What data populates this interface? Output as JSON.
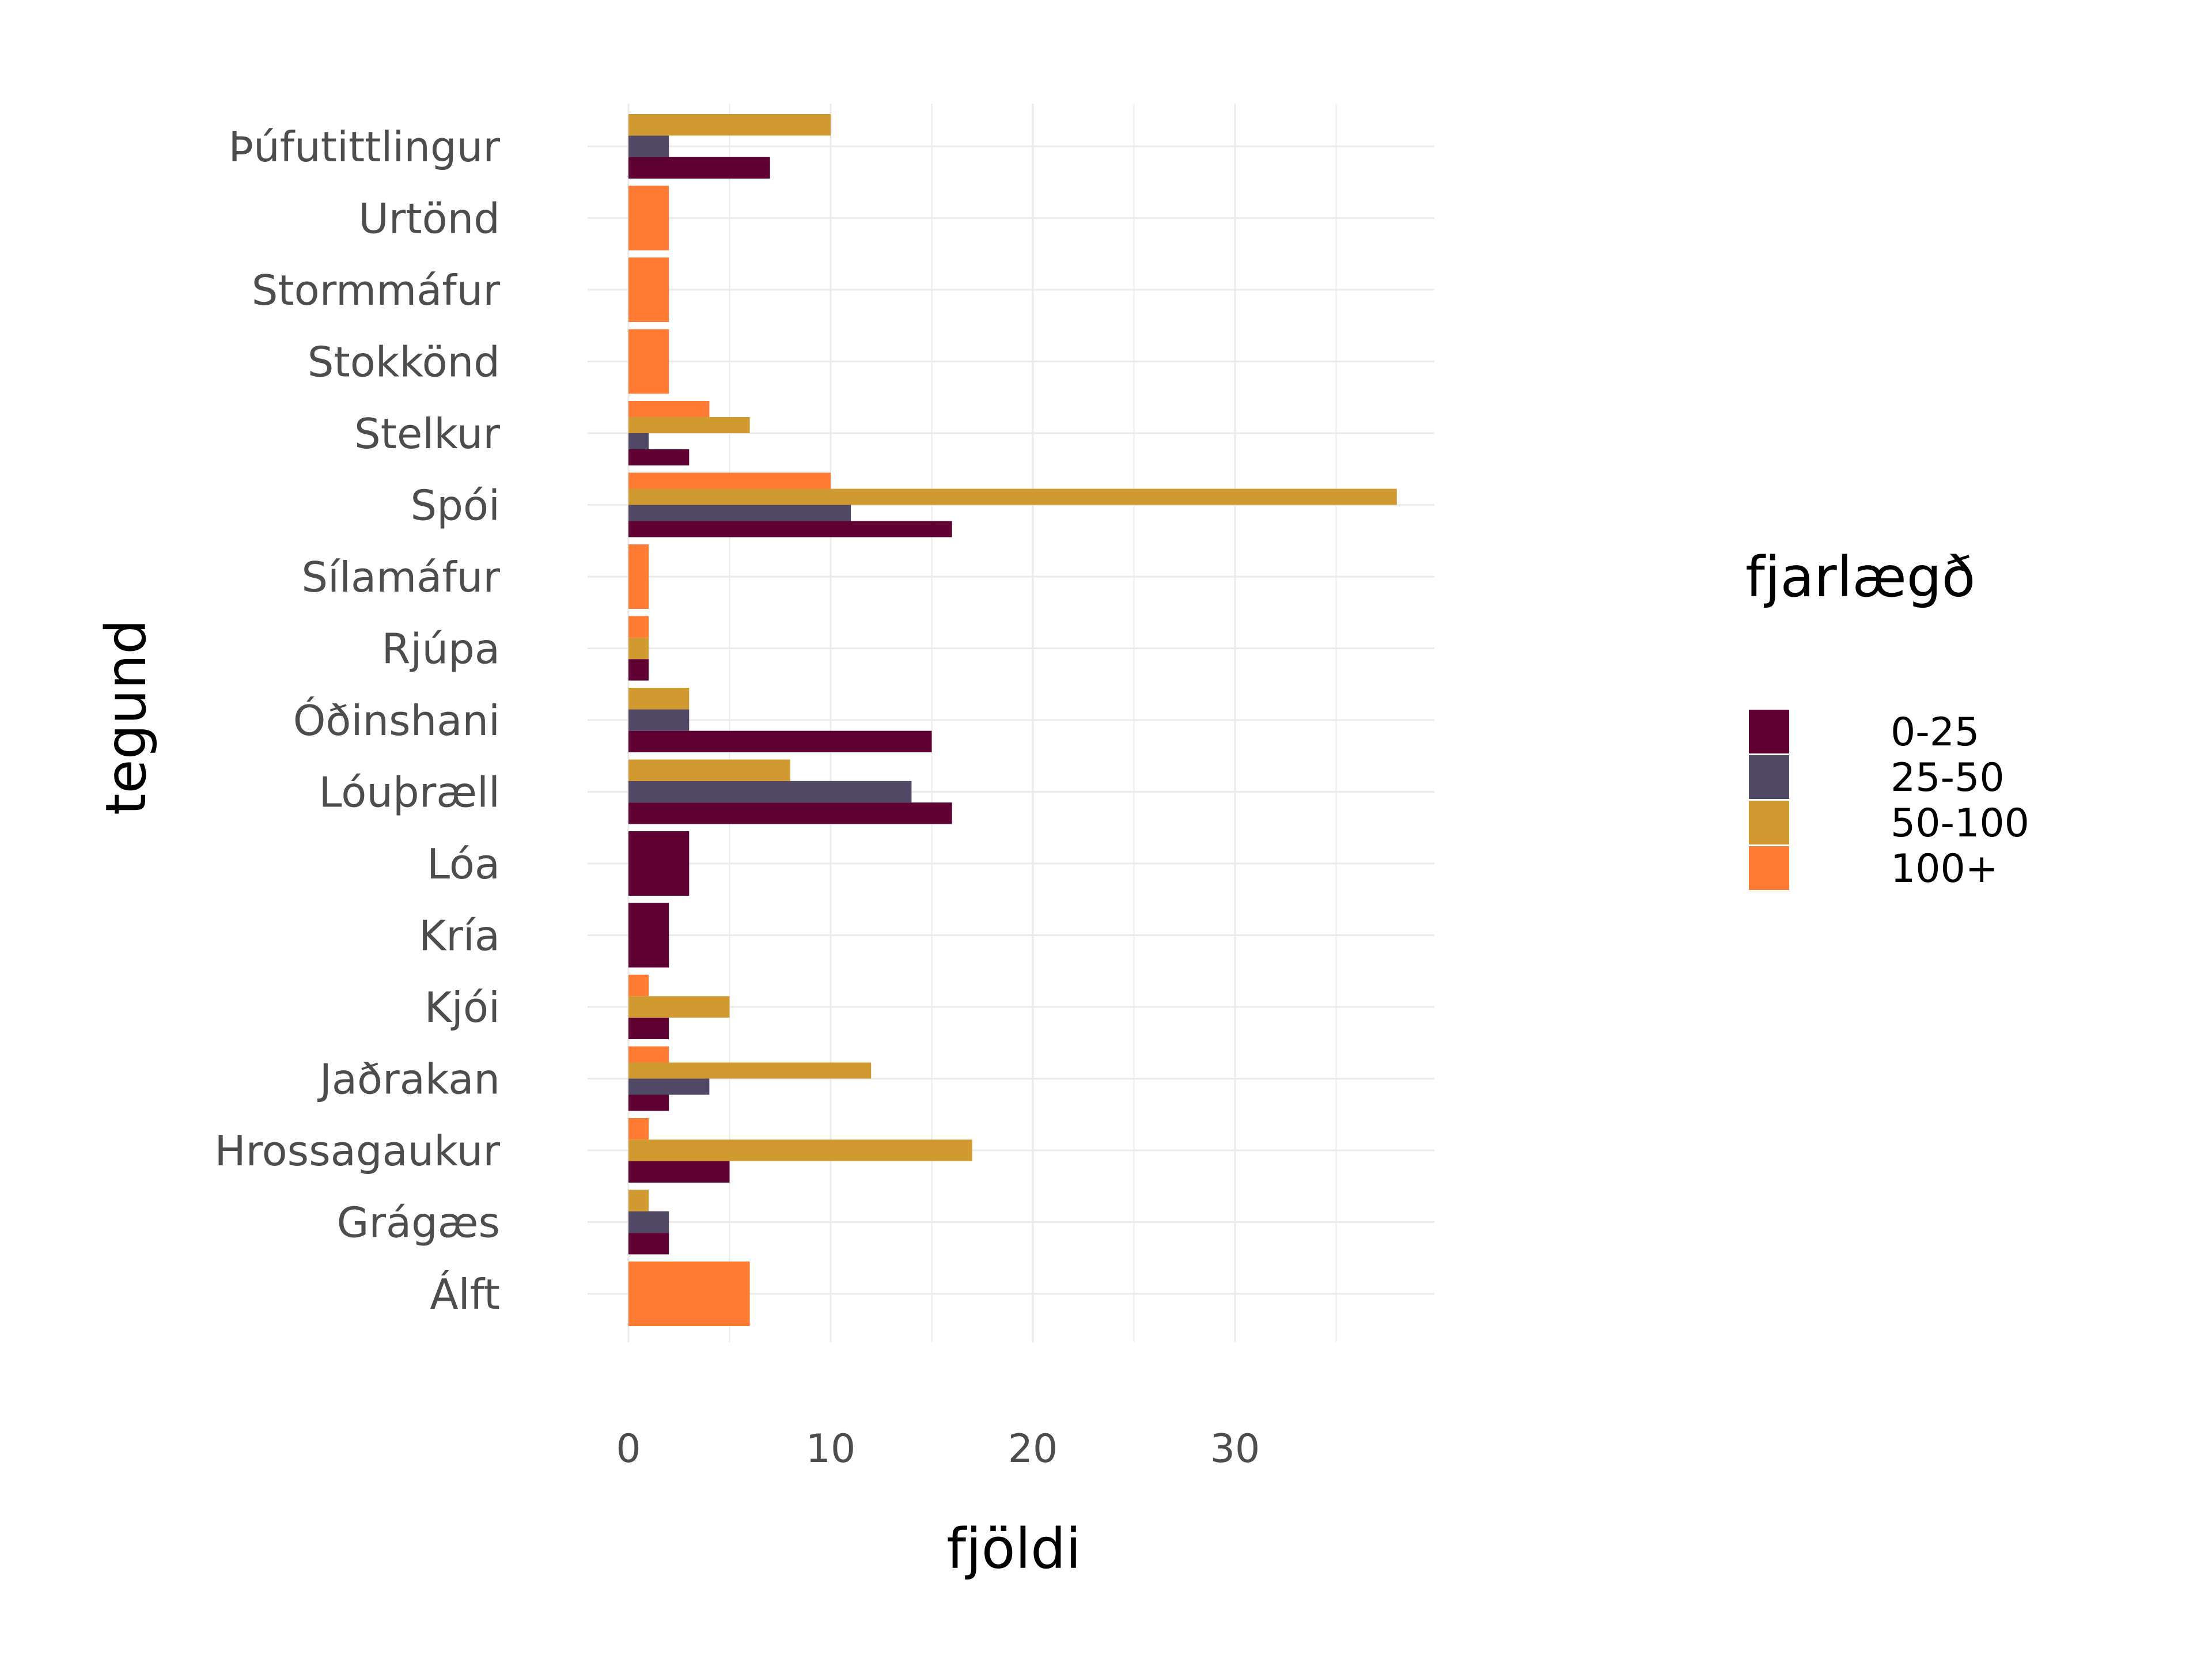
{
  "chart_data": {
    "type": "bar",
    "orientation": "horizontal",
    "xlabel": "fjöldi",
    "ylabel": "tegund",
    "xlim": [
      0,
      40
    ],
    "xticks": [
      0,
      10,
      20,
      30
    ],
    "grid": true,
    "legend": {
      "title": "fjarlægð",
      "position": "right"
    },
    "categories": [
      "Þúfutittlingur",
      "Urtönd",
      "Stormmáfur",
      "Stokkönd",
      "Stelkur",
      "Spói",
      "Sílamáfur",
      "Rjúpa",
      "Óðinshani",
      "Lóuþræll",
      "Lóa",
      "Kría",
      "Kjói",
      "Jaðrakan",
      "Hrossagaukur",
      "Grágæs",
      "Álft"
    ],
    "series": [
      {
        "name": "0-25",
        "color": "#5F0033",
        "values": [
          7,
          null,
          null,
          null,
          3,
          16,
          null,
          1,
          15,
          16,
          3,
          2,
          2,
          2,
          5,
          2,
          null
        ]
      },
      {
        "name": "25-50",
        "color": "#514866",
        "values": [
          2,
          null,
          null,
          null,
          1,
          11,
          null,
          null,
          3,
          14,
          null,
          null,
          null,
          4,
          null,
          2,
          null
        ]
      },
      {
        "name": "50-100",
        "color": "#D09A30",
        "values": [
          10,
          null,
          null,
          null,
          6,
          38,
          null,
          1,
          3,
          8,
          null,
          null,
          5,
          12,
          17,
          1,
          null
        ]
      },
      {
        "name": "100+",
        "color": "#FF7A33",
        "values": [
          null,
          2,
          2,
          2,
          4,
          10,
          1,
          1,
          null,
          null,
          null,
          null,
          1,
          2,
          1,
          null,
          6
        ]
      }
    ]
  }
}
